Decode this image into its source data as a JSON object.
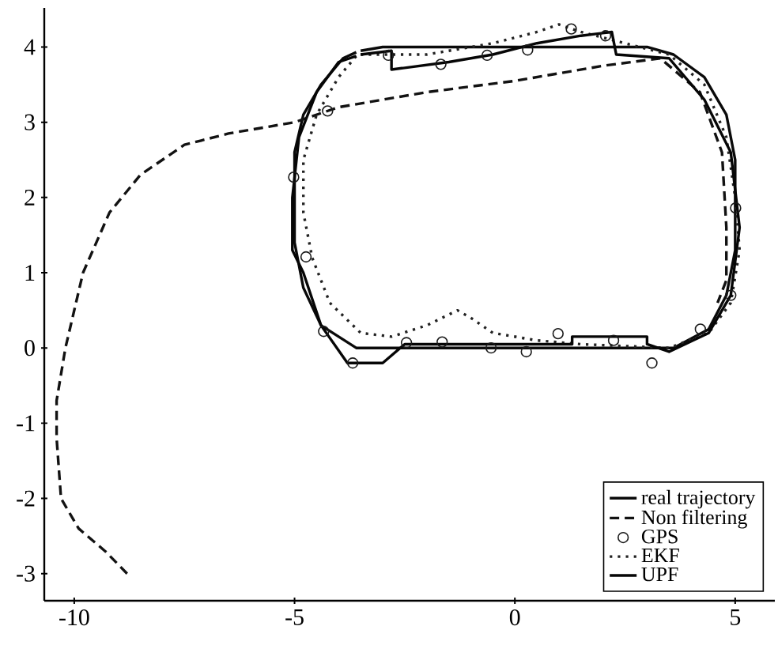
{
  "chart_data": {
    "type": "line",
    "xlim": [
      -10.68,
      5.9
    ],
    "ylim": [
      -3.36,
      4.52
    ],
    "xticks": [
      -10,
      -5,
      0,
      5
    ],
    "yticks": [
      -3,
      -2,
      -1,
      0,
      1,
      2,
      3,
      4
    ],
    "legend": "bottom right",
    "series": [
      {
        "name": "real trajectory",
        "color": "#0a0a0a",
        "type": "line",
        "line_style": "solid",
        "marker": "none",
        "x": [
          -3.5,
          -3,
          0,
          3,
          3.6,
          4.3,
          4.8,
          5,
          5,
          4.8,
          4.4,
          3.6,
          3,
          0,
          -3,
          -3.6,
          -4.4,
          -4.8,
          -5,
          -5,
          -4.8,
          -4.4,
          -3.9,
          -3.6
        ],
        "values": [
          3.95,
          4,
          4,
          4,
          3.9,
          3.6,
          3.1,
          2.5,
          1.3,
          0.7,
          0.25,
          0,
          0,
          0,
          0,
          0,
          0.3,
          0.8,
          1.4,
          2.6,
          3.1,
          3.5,
          3.85,
          3.93
        ]
      },
      {
        "name": "Non filtering",
        "color": "#121212",
        "type": "line",
        "line_style": "dashed",
        "marker": "none",
        "x": [
          -8.8,
          -9.3,
          -9.9,
          -10.3,
          -10.4,
          -10.4,
          -10.2,
          -9.8,
          -9.2,
          -8.5,
          -7.5,
          -6.5,
          -5,
          -4,
          -2,
          0,
          2,
          3.3,
          4.2,
          4.7,
          4.8,
          4.8,
          4.6
        ],
        "values": [
          -3,
          -2.7,
          -2.4,
          -2,
          -1.2,
          -0.7,
          0,
          1,
          1.8,
          2.3,
          2.7,
          2.85,
          3,
          3.2,
          3.4,
          3.55,
          3.75,
          3.85,
          3.4,
          2.6,
          1.6,
          0.9,
          0.6
        ]
      },
      {
        "name": "GPS",
        "color": "#1a1a1a",
        "type": "scatter",
        "marker": "circle",
        "x": [
          1.28,
          2.06,
          0.29,
          -0.63,
          -1.68,
          -2.87,
          -4.25,
          -5.02,
          -4.74,
          -4.34,
          -3.68,
          -2.46,
          -1.65,
          -0.54,
          0.26,
          0.98,
          2.24,
          3.11,
          4.21,
          4.9,
          5.01
        ],
        "values": [
          4.24,
          4.15,
          3.96,
          3.89,
          3.77,
          3.89,
          3.15,
          2.27,
          1.21,
          0.22,
          -0.2,
          0.07,
          0.08,
          0,
          -0.05,
          0.19,
          0.1,
          -0.2,
          0.25,
          0.7,
          1.86
        ]
      },
      {
        "name": "EKF",
        "color": "#222222",
        "type": "line",
        "line_style": "dotted",
        "marker": "none",
        "x": [
          -3.5,
          -2,
          -0.5,
          0.5,
          1,
          1.5,
          2.5,
          3.5,
          4.3,
          4.8,
          5,
          5.1,
          4.9,
          4.4,
          3.5,
          1.5,
          0.5,
          -0.5,
          -1,
          -1.3,
          -2,
          -2.8,
          -3.5,
          -4.2,
          -4.6,
          -4.8,
          -4.8,
          -4.5,
          -4,
          -3.6
        ],
        "values": [
          3.9,
          3.9,
          4.05,
          4.2,
          4.3,
          4.2,
          4.05,
          3.9,
          3.5,
          2.8,
          2,
          1.3,
          0.6,
          0.2,
          0,
          0.05,
          0.1,
          0.2,
          0.4,
          0.5,
          0.3,
          0.15,
          0.2,
          0.6,
          1.2,
          1.8,
          2.5,
          3.1,
          3.6,
          3.88
        ]
      },
      {
        "name": "UPF",
        "color": "#060606",
        "type": "line",
        "line_style": "solid",
        "marker": "none",
        "x": [
          -3.5,
          -2.8,
          -2.8,
          -1.5,
          -0.5,
          0.5,
          1.5,
          2.2,
          2.3,
          3.5,
          4.3,
          4.9,
          5.1,
          4.9,
          4.4,
          3.5,
          3,
          3,
          1.3,
          1.3,
          -2.5,
          -3,
          -3.8,
          -4.4,
          -4.8,
          -5.05,
          -5.05,
          -4.9,
          -4.5,
          -4,
          -3.6
        ],
        "values": [
          3.9,
          3.95,
          3.7,
          3.8,
          3.9,
          4.05,
          4.15,
          4.2,
          3.9,
          3.85,
          3.3,
          2.6,
          1.6,
          0.7,
          0.2,
          -0.05,
          0.05,
          0.15,
          0.15,
          0.05,
          0.05,
          -0.2,
          -0.2,
          0.3,
          1,
          1.3,
          2,
          2.8,
          3.4,
          3.8,
          3.88
        ]
      }
    ]
  }
}
